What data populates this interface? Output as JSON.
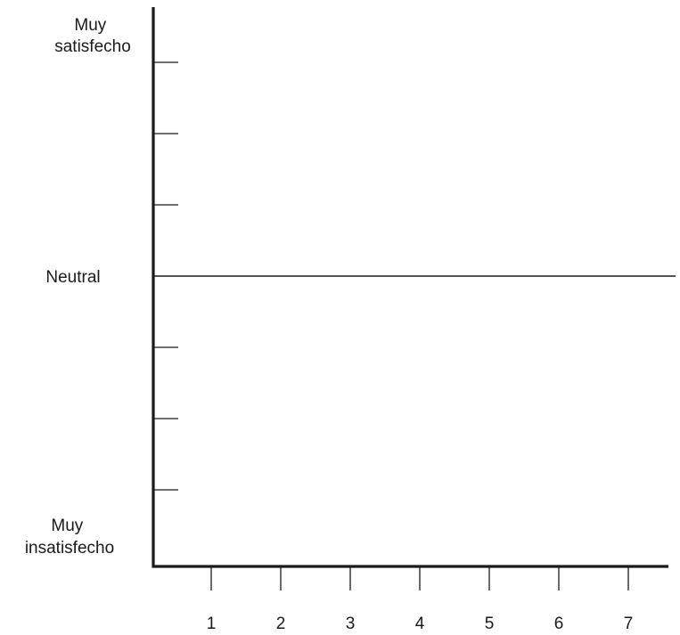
{
  "chart_data": {
    "type": "line",
    "title": "",
    "xlabel": "",
    "ylabel": "",
    "x_ticks": [
      "1",
      "2",
      "3",
      "4",
      "5",
      "6",
      "7"
    ],
    "y_labels": {
      "top": [
        "Muy",
        "satisfecho"
      ],
      "middle": [
        "Neutral"
      ],
      "bottom": [
        "Muy",
        "insatisfecho"
      ]
    },
    "y_tick_count_above_neutral": 3,
    "y_tick_count_below_neutral": 3,
    "neutral_line": true,
    "series": [],
    "grid": false,
    "colors": {
      "axis": "#1a1a1a",
      "text": "#1a1a1a"
    }
  }
}
